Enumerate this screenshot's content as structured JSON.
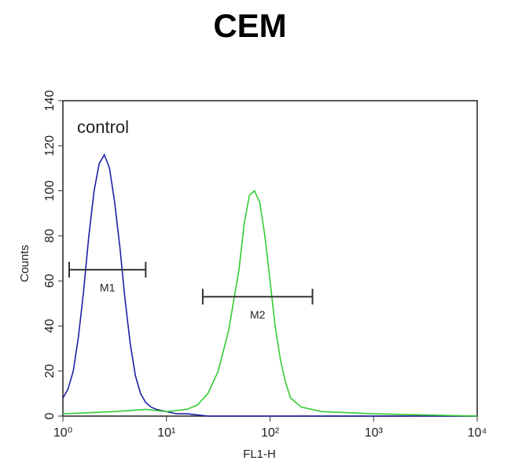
{
  "chart_data": {
    "type": "line",
    "title": "CEM",
    "x_label": "FL1-H",
    "y_label": "Counts",
    "annotation": "control",
    "xscale": "log",
    "xlim": [
      1,
      10000
    ],
    "xticks": [
      {
        "value": 1,
        "label": "10⁰"
      },
      {
        "value": 10,
        "label": "10¹"
      },
      {
        "value": 100,
        "label": "10²"
      },
      {
        "value": 1000,
        "label": "10³"
      },
      {
        "value": 10000,
        "label": "10⁴"
      }
    ],
    "ylim": [
      0,
      140
    ],
    "yticks": [
      0,
      20,
      40,
      60,
      80,
      100,
      120,
      140
    ],
    "series": [
      {
        "color": "#1f1fa8",
        "x": [
          1,
          1.12,
          1.26,
          1.41,
          1.58,
          1.78,
          2.0,
          2.24,
          2.51,
          2.82,
          3.16,
          3.55,
          3.98,
          4.47,
          5.01,
          5.62,
          6.31,
          7.08,
          7.94,
          10,
          12.6,
          15.8,
          25.1,
          100,
          10000
        ],
        "values": [
          8,
          12,
          20,
          35,
          55,
          80,
          100,
          112,
          116,
          110,
          95,
          75,
          52,
          32,
          18,
          10,
          6,
          4,
          3,
          2,
          1,
          1,
          0,
          0,
          0
        ]
      },
      {
        "color": "#33cc33",
        "x": [
          1,
          3.16,
          6.31,
          10,
          15.8,
          20,
          25.1,
          31.6,
          39.8,
          50.1,
          56.2,
          63.1,
          70.8,
          79.4,
          89.1,
          100,
          112,
          126,
          141,
          158,
          200,
          316,
          1000,
          10000
        ],
        "values": [
          1,
          2,
          3,
          2,
          3,
          5,
          10,
          20,
          38,
          65,
          85,
          98,
          100,
          95,
          80,
          60,
          40,
          25,
          15,
          8,
          4,
          2,
          1,
          0
        ]
      }
    ],
    "markers": [
      {
        "label": "M1",
        "x": [
          1.15,
          6.3
        ],
        "y": 65
      },
      {
        "label": "M2",
        "x": [
          22.4,
          257
        ],
        "y": 53
      }
    ]
  }
}
